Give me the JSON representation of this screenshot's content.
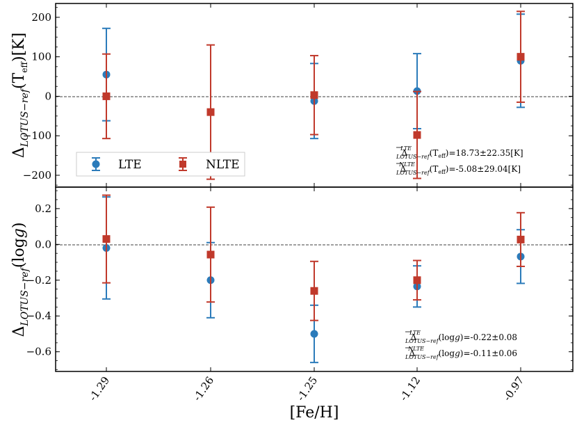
{
  "chart_data": [
    {
      "type": "scatter",
      "panel": "top",
      "ylabel": "Δ_{LOTUS−ref}(T_eff)[K]",
      "ylim": [
        -230,
        235
      ],
      "yticks": [
        -200,
        -100,
        0,
        100,
        200
      ],
      "ytick_labels": [
        "−200",
        "−100",
        "0",
        "100",
        "200"
      ],
      "reference_line": 0,
      "series": [
        {
          "name": "LTE",
          "color": "#2b7bba",
          "marker": "circle",
          "values": [
            55,
            null,
            -12,
            13,
            90
          ],
          "errors": [
            117,
            null,
            95,
            95,
            118
          ]
        },
        {
          "name": "NLTE",
          "color": "#c0392b",
          "marker": "square",
          "values": [
            0,
            -40,
            3,
            -98,
            100
          ],
          "errors": [
            107,
            170,
            100,
            110,
            115
          ]
        }
      ],
      "legend": {
        "position": "lower-left",
        "entries": [
          "LTE",
          "NLTE"
        ]
      },
      "annotations": [
        "Δ̄^{LTE}_{LOTUS−ref}(T_eff)=18.73±22.35[K]",
        "Δ̄^{NLTE}_{LOTUS−ref}(T_eff)=-5.08±29.04[K]"
      ]
    },
    {
      "type": "scatter",
      "panel": "bottom",
      "ylabel": "Δ_{LOTUS−ref}(log g)",
      "xlabel": "[Fe/H]",
      "ylim": [
        -0.71,
        0.32
      ],
      "yticks": [
        -0.6,
        -0.4,
        -0.2,
        0.0,
        0.2
      ],
      "ytick_labels": [
        "−0.6",
        "−0.4",
        "−0.2",
        "0.0",
        "0.2"
      ],
      "reference_line": 0,
      "categories": [
        "-1.29",
        "-1.26",
        "-1.25",
        "-1.12",
        "-0.97"
      ],
      "series": [
        {
          "name": "LTE",
          "color": "#2b7bba",
          "marker": "circle",
          "values": [
            -0.02,
            -0.2,
            -0.5,
            -0.235,
            -0.068
          ],
          "errors": [
            0.285,
            0.21,
            0.16,
            0.115,
            0.15
          ]
        },
        {
          "name": "NLTE",
          "color": "#c0392b",
          "marker": "square",
          "values": [
            0.03,
            -0.057,
            -0.26,
            -0.2,
            0.027
          ],
          "errors": [
            0.245,
            0.265,
            0.165,
            0.11,
            0.15
          ]
        }
      ],
      "annotations": [
        "Δ̄^{LTE}_{LOTUS−ref}(log g)=-0.22±0.08",
        "Δ̄^{NLTE}_{LOTUS−ref}(log g)=-0.11±0.06"
      ]
    }
  ],
  "labels": {
    "top_ylabel_main": "Δ",
    "top_ylabel_sub": "LOTUS−ref",
    "top_ylabel_paren_open": "(T",
    "top_ylabel_eff": "eff",
    "top_ylabel_paren_close": ")[K]",
    "bottom_ylabel_main": "Δ",
    "bottom_ylabel_sub": "LOTUS−ref",
    "bottom_ylabel_paren": "(log",
    "bottom_ylabel_g": "g",
    "bottom_ylabel_close": ")",
    "xlabel": "[Fe/H]",
    "legend_lte": "LTE",
    "legend_nlte": "NLTE",
    "annot_top_lte_sup": "LTE",
    "annot_top_lte_sub": "LOTUS−ref",
    "annot_top_lte_text": "(T",
    "annot_top_lte_eff": "eff",
    "annot_top_lte_val": ")=18.73±22.35[K]",
    "annot_top_nlte_sup": "NLTE",
    "annot_top_nlte_sub": "LOTUS−ref",
    "annot_top_nlte_text": "(T",
    "annot_top_nlte_eff": "eff",
    "annot_top_nlte_val": ")=-5.08±29.04[K]",
    "annot_bot_lte_sup": "LTE",
    "annot_bot_lte_sub": "LOTUS−ref",
    "annot_bot_lte_text": "(log",
    "annot_bot_lte_g": "g",
    "annot_bot_lte_val": ")=-0.22±0.08",
    "annot_bot_nlte_sup": "NLTE",
    "annot_bot_nlte_sub": "LOTUS−ref",
    "annot_bot_nlte_text": "(log",
    "annot_bot_nlte_g": "g",
    "annot_bot_nlte_val": ")=-0.11±0.06",
    "delta": "Δ"
  }
}
